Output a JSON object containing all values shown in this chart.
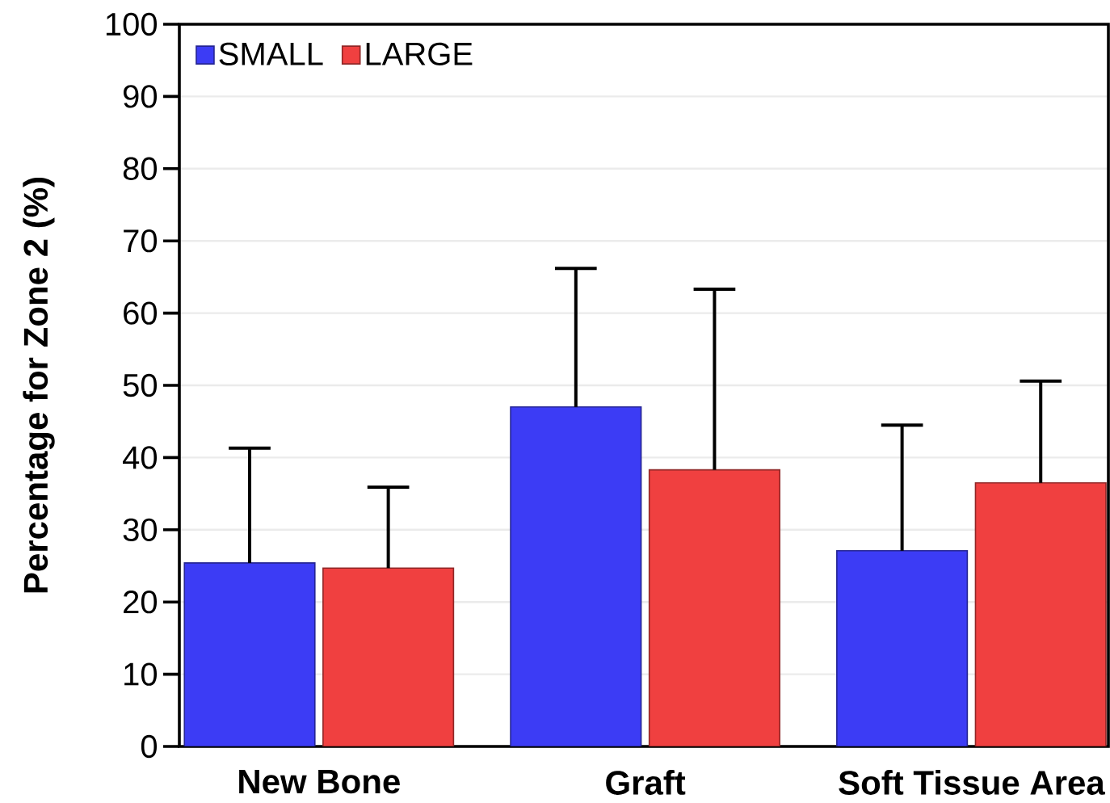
{
  "chart_data": {
    "type": "bar",
    "ylabel": "Percentage for Zone 2 (%)",
    "categories": [
      "New Bone",
      "Graft",
      "Soft Tissue Area"
    ],
    "series": [
      {
        "name": "SMALL",
        "color": "#3c3cf5",
        "values": [
          25.4,
          47.0,
          27.1
        ],
        "errors": [
          [
            25.4,
            41.3
          ],
          [
            47.0,
            66.2
          ],
          [
            27.1,
            44.5
          ]
        ]
      },
      {
        "name": "LARGE",
        "color": "#f04040",
        "values": [
          24.7,
          38.3,
          36.5
        ],
        "errors": [
          [
            24.7,
            35.9
          ],
          [
            38.3,
            63.3
          ],
          [
            36.5,
            50.6
          ]
        ]
      }
    ],
    "ylim": [
      0,
      100
    ],
    "yticks": [
      0,
      10,
      20,
      30,
      40,
      50,
      60,
      70,
      80,
      90,
      100
    ],
    "grid": "y",
    "legend": "top left"
  }
}
